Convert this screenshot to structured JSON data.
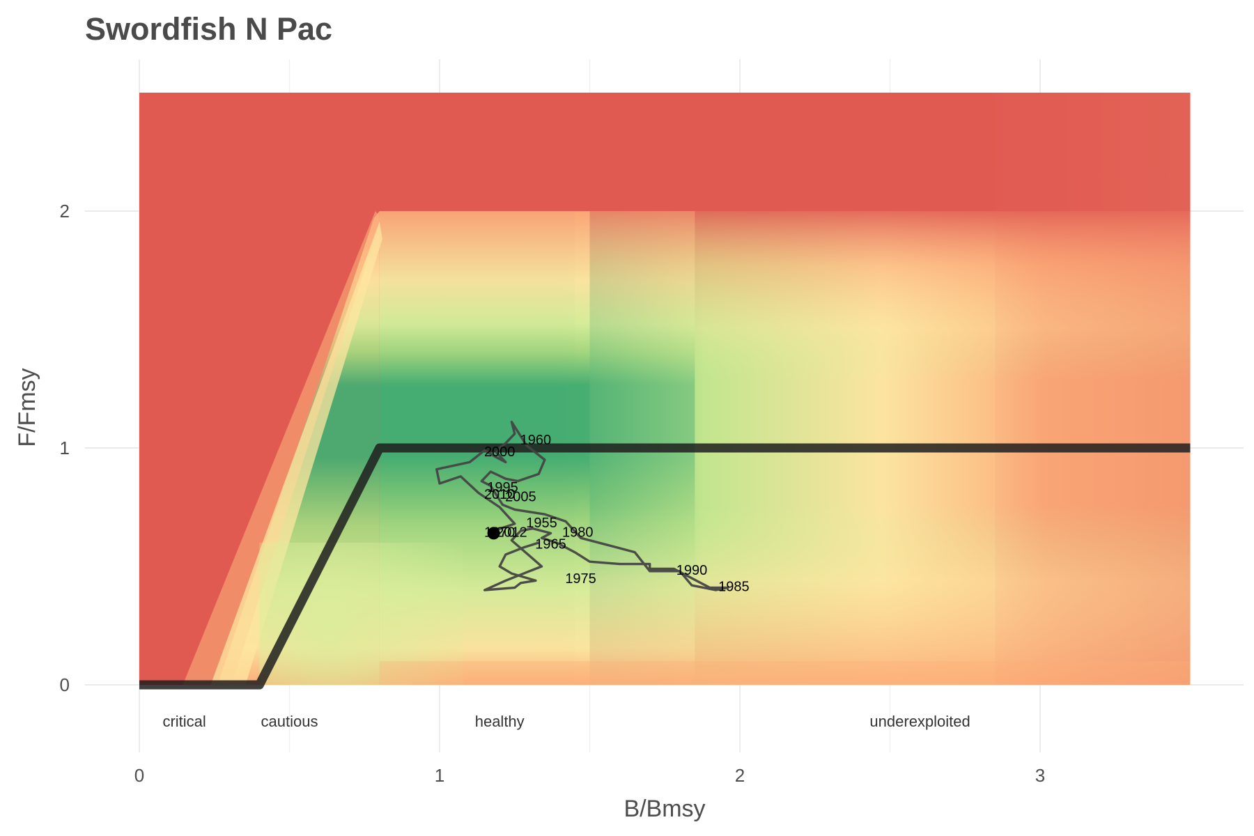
{
  "chart_data": {
    "type": "line",
    "title": "Swordfish N Pac",
    "xlabel": "B/Bmsy",
    "ylabel": "F/Fmsy",
    "xlim": [
      -0.18,
      3.65
    ],
    "ylim": [
      -0.3,
      2.65
    ],
    "x_ticks": [
      0,
      1,
      2,
      3
    ],
    "y_ticks": [
      0,
      1,
      2
    ],
    "x_tick_labels": [
      "0",
      "1",
      "2",
      "3"
    ],
    "y_tick_labels": [
      "0",
      "1",
      "2"
    ],
    "grid": true,
    "background": {
      "description_kind": "kobe-style status heatmap",
      "x_range": [
        0,
        3.5
      ],
      "y_range": [
        0,
        2.5
      ],
      "colors": {
        "red": "#e05a52",
        "orange": "#fcae79",
        "yellow": "#fde6a0",
        "lime": "#d9ee9a",
        "lightgreen": "#a6d77e",
        "green": "#46ad72"
      }
    },
    "control_rule": {
      "name": "harvest control rule",
      "x": [
        0,
        0.4,
        0.8,
        3.5
      ],
      "y": [
        0,
        0,
        1,
        1
      ],
      "color": "#1e1e1e"
    },
    "zones": [
      {
        "label": "critical",
        "x": 0.15
      },
      {
        "label": "cautious",
        "x": 0.5
      },
      {
        "label": "healthy",
        "x": 1.2
      },
      {
        "label": "underexploited",
        "x": 2.6
      }
    ],
    "trajectory": {
      "name": "stock trajectory",
      "color": "#454545",
      "years": [
        1951,
        1952,
        1953,
        1954,
        1955,
        1956,
        1957,
        1958,
        1959,
        1960,
        1961,
        1962,
        1963,
        1964,
        1965,
        1966,
        1967,
        1968,
        1969,
        1970,
        1971,
        1972,
        1973,
        1974,
        1975,
        1976,
        1977,
        1978,
        1979,
        1980,
        1981,
        1982,
        1983,
        1984,
        1985,
        1986,
        1987,
        1988,
        1989,
        1990,
        1991,
        1992,
        1993,
        1994,
        1995,
        1996,
        1997,
        1998,
        1999,
        2000,
        2001,
        2002,
        2003,
        2004,
        2005,
        2006,
        2007,
        2008,
        2009,
        2010,
        2011,
        2012
      ],
      "b": [
        1.33,
        1.28,
        1.22,
        1.2,
        1.24,
        1.32,
        1.27,
        1.25,
        1.15,
        1.22,
        1.34,
        1.24,
        1.27,
        1.31,
        1.37,
        1.34,
        1.39,
        1.45,
        1.5,
        1.6,
        1.7,
        1.7,
        1.78,
        1.84,
        1.9,
        1.96,
        1.92,
        1.84,
        1.8,
        1.7,
        1.65,
        1.47,
        1.42,
        1.35,
        1.25,
        1.21,
        1.17,
        1.14,
        1.17,
        1.22,
        1.26,
        1.33,
        1.35,
        1.29,
        1.24,
        1.25,
        1.22,
        1.2,
        1.19,
        1.22,
        1.19,
        1.15,
        1.1,
        0.99,
        1.0,
        1.07,
        1.13,
        1.2,
        1.25,
        1.18,
        1.2,
        1.18
      ],
      "f": [
        0.6,
        0.58,
        0.55,
        0.5,
        0.47,
        0.44,
        0.43,
        0.41,
        0.4,
        0.44,
        0.5,
        0.61,
        0.65,
        0.66,
        0.64,
        0.62,
        0.6,
        0.56,
        0.52,
        0.51,
        0.51,
        0.49,
        0.49,
        0.45,
        0.41,
        0.41,
        0.4,
        0.42,
        0.48,
        0.48,
        0.56,
        0.62,
        0.69,
        0.72,
        0.74,
        0.76,
        0.84,
        0.86,
        0.9,
        0.87,
        0.86,
        0.89,
        0.95,
        1.01,
        1.11,
        1.06,
        1.02,
        1.0,
        0.98,
        0.94,
        0.96,
        0.99,
        0.94,
        0.91,
        0.85,
        0.88,
        0.81,
        0.75,
        0.68,
        0.65,
        0.64,
        0.64
      ]
    },
    "year_labels": [
      {
        "text": "1955",
        "b": 1.34,
        "f": 0.665
      },
      {
        "text": "1960",
        "b": 1.32,
        "f": 1.015
      },
      {
        "text": "1965",
        "b": 1.37,
        "f": 0.575
      },
      {
        "text": "1970",
        "b": 1.2,
        "f": 0.625
      },
      {
        "text": "1975",
        "b": 1.47,
        "f": 0.43
      },
      {
        "text": "1980",
        "b": 1.46,
        "f": 0.625
      },
      {
        "text": "1985",
        "b": 1.98,
        "f": 0.395
      },
      {
        "text": "1990",
        "b": 1.84,
        "f": 0.465
      },
      {
        "text": "1995",
        "b": 1.21,
        "f": 0.815
      },
      {
        "text": "2000",
        "b": 1.2,
        "f": 0.965
      },
      {
        "text": "2005",
        "b": 1.27,
        "f": 0.775
      },
      {
        "text": "2010",
        "b": 1.2,
        "f": 0.785
      },
      {
        "text": "2012",
        "b": 1.24,
        "f": 0.625
      }
    ],
    "current_point": {
      "year": 2012,
      "b": 1.18,
      "f": 0.64
    }
  }
}
